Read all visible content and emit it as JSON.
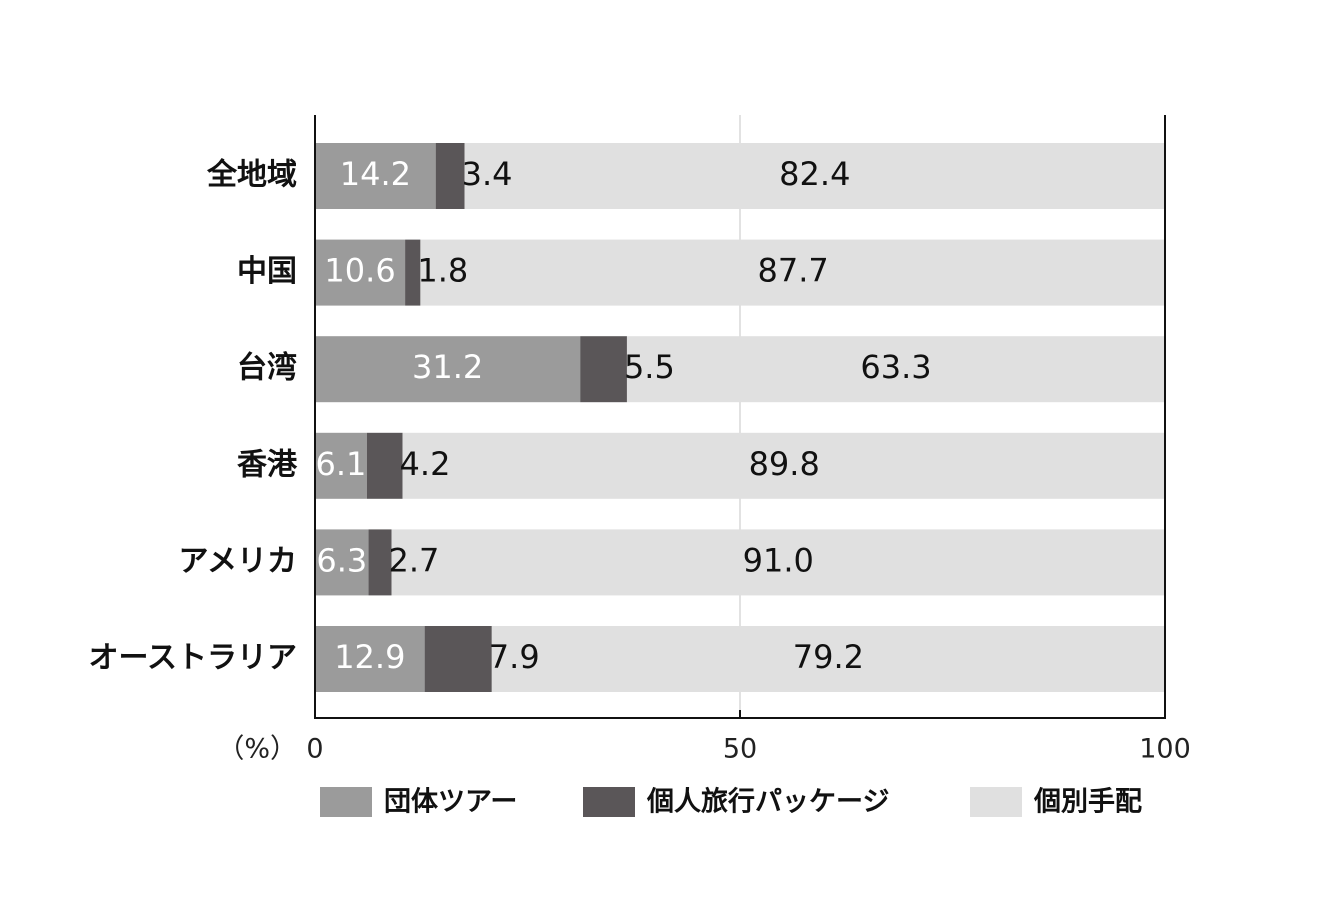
{
  "chart_data": {
    "type": "stacked-bar-horizontal",
    "categories": [
      "全地域",
      "中国",
      "台湾",
      "香港",
      "アメリカ",
      "オーストラリア"
    ],
    "series": [
      {
        "name": "団体ツアー",
        "color": "#9b9b9b",
        "values": [
          14.2,
          10.6,
          31.2,
          6.1,
          6.3,
          12.9
        ],
        "value_labels": [
          "14.2",
          "10.6",
          "31.2",
          "6.1",
          "6.3",
          "12.9"
        ]
      },
      {
        "name": "個人旅行パッケージ",
        "color": "#5a5658",
        "values": [
          3.4,
          1.8,
          5.5,
          4.2,
          2.7,
          7.9
        ],
        "value_labels": [
          "3.4",
          "1.8",
          "5.5",
          "4.2",
          "2.7",
          "7.9"
        ]
      },
      {
        "name": "個別手配",
        "color": "#e0e0e0",
        "values": [
          82.4,
          87.7,
          63.3,
          89.8,
          91.0,
          79.2
        ],
        "value_labels": [
          "82.4",
          "87.7",
          "63.3",
          "89.8",
          "91.0",
          "79.2"
        ]
      }
    ],
    "xlabel": "（%）",
    "xlim": [
      0,
      100
    ],
    "xticks": [
      0,
      50,
      100
    ],
    "grid": true
  }
}
